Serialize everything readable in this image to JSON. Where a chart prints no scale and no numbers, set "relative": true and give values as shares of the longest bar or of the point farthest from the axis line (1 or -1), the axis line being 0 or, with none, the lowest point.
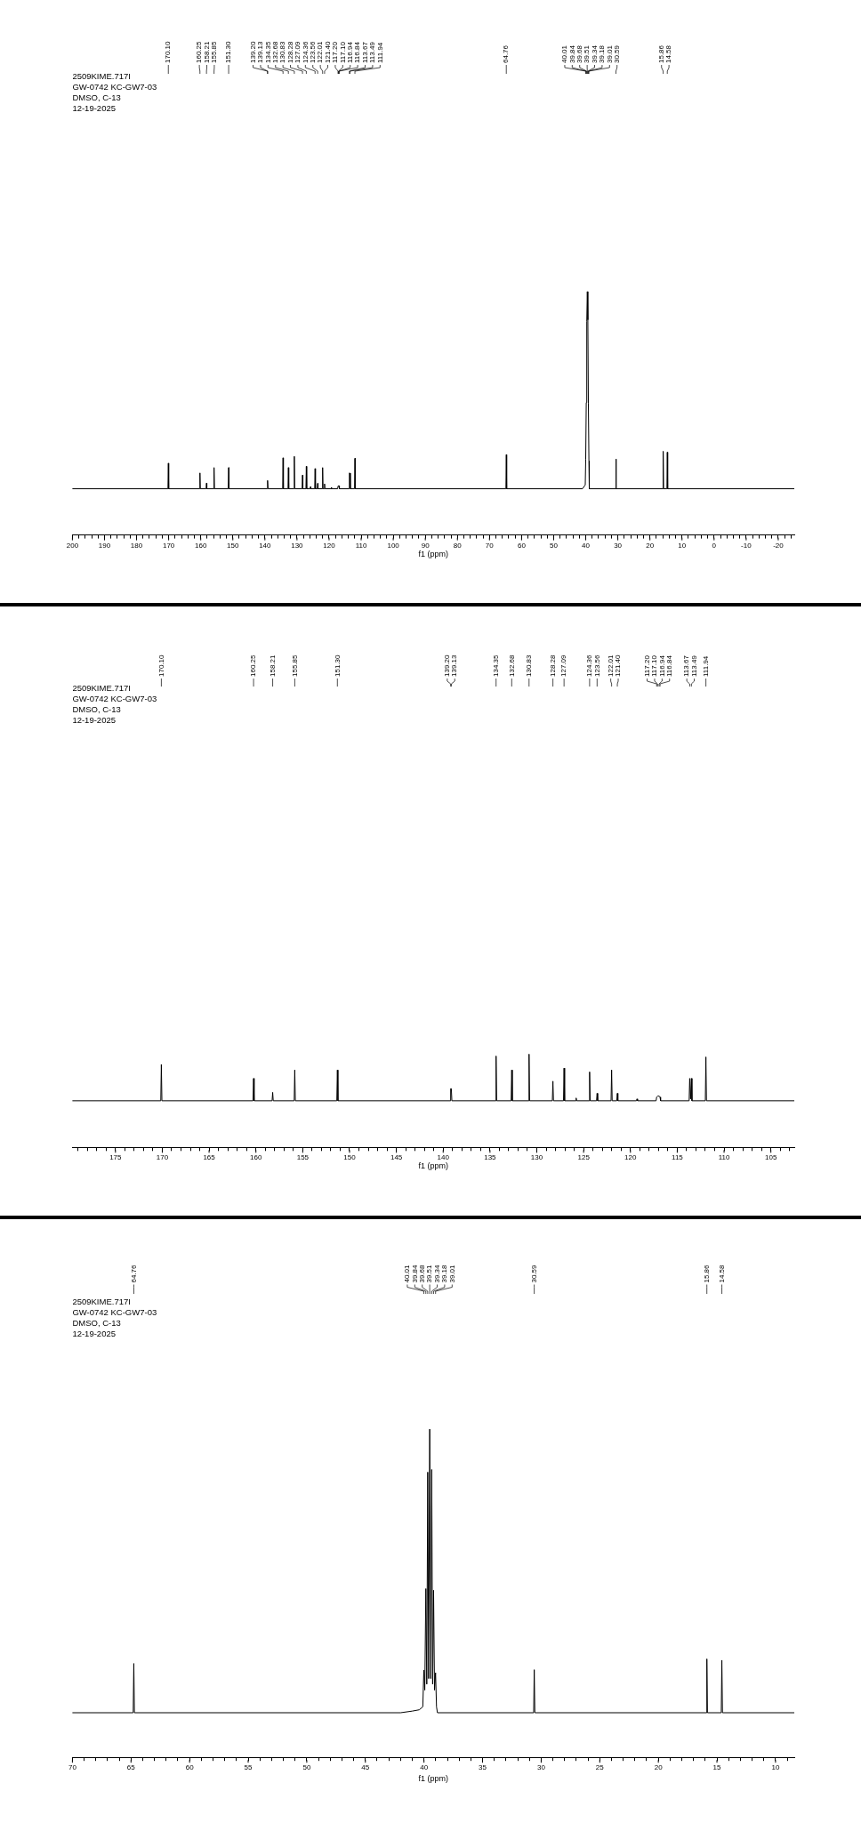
{
  "chart_data": [
    {
      "type": "line",
      "title": "2509KIME.717I",
      "subtitle": "GW-0742 KC-GW7-03",
      "xlabel": "f1 (ppm)",
      "relative": true,
      "annotations": [
        "DMSO, C-13",
        "12-19-2025",
        {
          "text": "170.10",
          "x": 170.1
        },
        {
          "text": "160.25",
          "x": 160.25
        },
        {
          "text": "158.21",
          "x": 158.21
        },
        {
          "text": "155.85",
          "x": 155.85
        },
        {
          "text": "151.30",
          "x": 151.3
        },
        {
          "text": "139.20",
          "x": 139.2
        },
        {
          "text": "139.13",
          "x": 139.13
        },
        {
          "text": "134.35",
          "x": 134.35
        },
        {
          "text": "132.68",
          "x": 132.68
        },
        {
          "text": "130.83",
          "x": 130.83
        },
        {
          "text": "128.28",
          "x": 128.28
        },
        {
          "text": "127.09",
          "x": 127.09
        },
        {
          "text": "124.36",
          "x": 124.36
        },
        {
          "text": "123.56",
          "x": 123.56
        },
        {
          "text": "122.01",
          "x": 122.01
        },
        {
          "text": "121.40",
          "x": 121.4
        },
        {
          "text": "117.20",
          "x": 117.2
        },
        {
          "text": "117.10",
          "x": 117.1
        },
        {
          "text": "116.94",
          "x": 116.94
        },
        {
          "text": "116.84",
          "x": 116.84
        },
        {
          "text": "113.67",
          "x": 113.67
        },
        {
          "text": "113.49",
          "x": 113.49
        },
        {
          "text": "111.94",
          "x": 111.94
        },
        {
          "text": "64.76",
          "x": 64.76
        },
        {
          "text": "40.01",
          "x": 40.01
        },
        {
          "text": "39.84",
          "x": 39.84
        },
        {
          "text": "39.68",
          "x": 39.68
        },
        {
          "text": "39.51",
          "x": 39.51
        },
        {
          "text": "39.34",
          "x": 39.34
        },
        {
          "text": "39.18",
          "x": 39.18
        },
        {
          "text": "39.01",
          "x": 39.01
        },
        {
          "text": "30.59",
          "x": 30.59
        },
        {
          "text": "15.86",
          "x": 15.86
        },
        {
          "text": "14.58",
          "x": 14.58
        }
      ],
      "xlim": [
        200,
        -25
      ],
      "xticks": [
        200,
        {
          "value": 198,
          "label": null
        },
        {
          "value": 196,
          "label": null
        },
        {
          "value": 194,
          "label": null
        },
        {
          "value": 192,
          "label": null
        },
        190,
        {
          "value": 188,
          "label": null
        },
        {
          "value": 186,
          "label": null
        },
        {
          "value": 184,
          "label": null
        },
        {
          "value": 182,
          "label": null
        },
        180,
        {
          "value": 178,
          "label": null
        },
        {
          "value": 176,
          "label": null
        },
        {
          "value": 174,
          "label": null
        },
        {
          "value": 172,
          "label": null
        },
        170,
        {
          "value": 168,
          "label": null
        },
        {
          "value": 166,
          "label": null
        },
        {
          "value": 164,
          "label": null
        },
        {
          "value": 162,
          "label": null
        },
        160,
        {
          "value": 158,
          "label": null
        },
        {
          "value": 156,
          "label": null
        },
        {
          "value": 154,
          "label": null
        },
        {
          "value": 152,
          "label": null
        },
        150,
        {
          "value": 148,
          "label": null
        },
        {
          "value": 146,
          "label": null
        },
        {
          "value": 144,
          "label": null
        },
        {
          "value": 142,
          "label": null
        },
        140,
        {
          "value": 138,
          "label": null
        },
        {
          "value": 136,
          "label": null
        },
        {
          "value": 134,
          "label": null
        },
        {
          "value": 132,
          "label": null
        },
        130,
        {
          "value": 128,
          "label": null
        },
        {
          "value": 126,
          "label": null
        },
        {
          "value": 124,
          "label": null
        },
        {
          "value": 122,
          "label": null
        },
        120,
        {
          "value": 118,
          "label": null
        },
        {
          "value": 116,
          "label": null
        },
        {
          "value": 114,
          "label": null
        },
        {
          "value": 112,
          "label": null
        },
        110,
        {
          "value": 108,
          "label": null
        },
        {
          "value": 106,
          "label": null
        },
        {
          "value": 104,
          "label": null
        },
        {
          "value": 102,
          "label": null
        },
        100,
        {
          "value": 98,
          "label": null
        },
        {
          "value": 96,
          "label": null
        },
        {
          "value": 94,
          "label": null
        },
        {
          "value": 92,
          "label": null
        },
        90,
        {
          "value": 88,
          "label": null
        },
        {
          "value": 86,
          "label": null
        },
        {
          "value": 84,
          "label": null
        },
        {
          "value": 82,
          "label": null
        },
        80,
        {
          "value": 78,
          "label": null
        },
        {
          "value": 76,
          "label": null
        },
        {
          "value": 74,
          "label": null
        },
        {
          "value": 72,
          "label": null
        },
        70,
        {
          "value": 68,
          "label": null
        },
        {
          "value": 66,
          "label": null
        },
        {
          "value": 64,
          "label": null
        },
        {
          "value": 62,
          "label": null
        },
        60,
        {
          "value": 58,
          "label": null
        },
        {
          "value": 56,
          "label": null
        },
        {
          "value": 54,
          "label": null
        },
        {
          "value": 52,
          "label": null
        },
        50,
        {
          "value": 48,
          "label": null
        },
        {
          "value": 46,
          "label": null
        },
        {
          "value": 44,
          "label": null
        },
        {
          "value": 42,
          "label": null
        },
        40,
        {
          "value": 38,
          "label": null
        },
        {
          "value": 36,
          "label": null
        },
        {
          "value": 34,
          "label": null
        },
        {
          "value": 32,
          "label": null
        },
        30,
        {
          "value": 28,
          "label": null
        },
        {
          "value": 26,
          "label": null
        },
        {
          "value": 24,
          "label": null
        },
        {
          "value": 22,
          "label": null
        },
        20,
        {
          "value": 18,
          "label": null
        },
        {
          "value": 16,
          "label": null
        },
        {
          "value": 14,
          "label": null
        },
        {
          "value": 12,
          "label": null
        },
        10,
        {
          "value": 8,
          "label": null
        },
        {
          "value": 6,
          "label": null
        },
        {
          "value": 4,
          "label": null
        },
        {
          "value": 2,
          "label": null
        },
        0,
        {
          "value": -2,
          "label": null
        },
        {
          "value": -4,
          "label": null
        },
        {
          "value": -6,
          "label": null
        },
        {
          "value": -8,
          "label": null
        },
        -10,
        {
          "value": -12,
          "label": null
        },
        {
          "value": -14,
          "label": null
        },
        {
          "value": -16,
          "label": null
        },
        {
          "value": -18,
          "label": null
        },
        -20,
        {
          "value": -22,
          "label": null
        },
        {
          "value": -24,
          "label": null
        }
      ],
      "series": [
        {
          "color": "#000000",
          "x": [
            200,
            170.22,
            170.1,
            169.98,
            160.37,
            160.25,
            160.13,
            158.33,
            158.21,
            158.09,
            155.97,
            155.85,
            155.73,
            151.42,
            151.3,
            151.18,
            139.32,
            139.2,
            139.13,
            139.01,
            134.47,
            134.35,
            134.23,
            132.8,
            132.68,
            132.56,
            130.95,
            130.83,
            130.71,
            128.4,
            128.28,
            128.16,
            127.21,
            127.09,
            126.97,
            125.92,
            125.8,
            125.68,
            124.48,
            124.36,
            124.24,
            123.68,
            123.56,
            123.44,
            122.13,
            122.01,
            121.89,
            121.52,
            121.4,
            121.28,
            119.42,
            119.3,
            119.18,
            117.32,
            117.2,
            117.1,
            116.94,
            116.84,
            116.72,
            113.79,
            113.67,
            113.49,
            113.37,
            112.06,
            111.94,
            111.82,
            64.88,
            64.76,
            64.64,
            41,
            40.15,
            40.01,
            39.84,
            39.68,
            39.51,
            39.34,
            39.18,
            39.01,
            38.9,
            30.71,
            30.59,
            30.47,
            15.98,
            15.86,
            15.74,
            14.7,
            14.58,
            14.46,
            -25
          ],
          "values": [
            0.19,
            0.19,
            0.295,
            0.19,
            0.19,
            0.255,
            0.19,
            0.19,
            0.213,
            0.19,
            0.19,
            0.277,
            0.19,
            0.19,
            0.277,
            0.19,
            0.19,
            0.224,
            0.224,
            0.19,
            0.19,
            0.317,
            0.19,
            0.19,
            0.277,
            0.19,
            0.19,
            0.323,
            0.19,
            0.19,
            0.246,
            0.19,
            0.19,
            0.282,
            0.19,
            0.19,
            0.198,
            0.19,
            0.19,
            0.273,
            0.19,
            0.19,
            0.212,
            0.19,
            0.19,
            0.277,
            0.19,
            0.19,
            0.21,
            0.19,
            0.19,
            0.196,
            0.19,
            0.19,
            0.201,
            0.201,
            0.202,
            0.201,
            0.19,
            0.19,
            0.255,
            0.254,
            0.19,
            0.19,
            0.315,
            0.19,
            0.19,
            0.33,
            0.19,
            0.19,
            0.206,
            0.312,
            0.544,
            0.878,
            1,
            0.884,
            0.54,
            0.304,
            0.19,
            0.19,
            0.312,
            0.19,
            0.19,
            0.344,
            0.19,
            0.19,
            0.34,
            0.19,
            0.19
          ]
        }
      ]
    },
    {
      "type": "line",
      "title": "2509KIME.717I",
      "subtitle": "GW-0742 KC-GW7-03",
      "xlabel": "f1 (ppm)",
      "relative": true,
      "annotations": [
        "DMSO, C-13",
        "12-19-2025",
        {
          "text": "170.10",
          "x": 170.1
        },
        {
          "text": "160.25",
          "x": 160.25
        },
        {
          "text": "158.21",
          "x": 158.21
        },
        {
          "text": "155.85",
          "x": 155.85
        },
        {
          "text": "151.30",
          "x": 151.3
        },
        {
          "text": "139.20",
          "x": 139.2
        },
        {
          "text": "139.13",
          "x": 139.13
        },
        {
          "text": "134.35",
          "x": 134.35
        },
        {
          "text": "132.68",
          "x": 132.68
        },
        {
          "text": "130.83",
          "x": 130.83
        },
        {
          "text": "128.28",
          "x": 128.28
        },
        {
          "text": "127.09",
          "x": 127.09
        },
        {
          "text": "124.36",
          "x": 124.36
        },
        {
          "text": "123.56",
          "x": 123.56
        },
        {
          "text": "122.01",
          "x": 122.01
        },
        {
          "text": "121.40",
          "x": 121.4
        },
        {
          "text": "117.20",
          "x": 117.2
        },
        {
          "text": "117.10",
          "x": 117.1
        },
        {
          "text": "116.94",
          "x": 116.94
        },
        {
          "text": "116.84",
          "x": 116.84
        },
        {
          "text": "113.67",
          "x": 113.67
        },
        {
          "text": "113.49",
          "x": 113.49
        },
        {
          "text": "111.94",
          "x": 111.94
        }
      ],
      "xlim": [
        179.6,
        102.5
      ],
      "xticks": [
        {
          "value": 179,
          "label": null
        },
        {
          "value": 178,
          "label": null
        },
        {
          "value": 177,
          "label": null
        },
        {
          "value": 176,
          "label": null
        },
        175,
        {
          "value": 174,
          "label": null
        },
        {
          "value": 173,
          "label": null
        },
        {
          "value": 172,
          "label": null
        },
        {
          "value": 171,
          "label": null
        },
        170,
        {
          "value": 169,
          "label": null
        },
        {
          "value": 168,
          "label": null
        },
        {
          "value": 167,
          "label": null
        },
        {
          "value": 166,
          "label": null
        },
        165,
        {
          "value": 164,
          "label": null
        },
        {
          "value": 163,
          "label": null
        },
        {
          "value": 162,
          "label": null
        },
        {
          "value": 161,
          "label": null
        },
        160,
        {
          "value": 159,
          "label": null
        },
        {
          "value": 158,
          "label": null
        },
        {
          "value": 157,
          "label": null
        },
        {
          "value": 156,
          "label": null
        },
        155,
        {
          "value": 154,
          "label": null
        },
        {
          "value": 153,
          "label": null
        },
        {
          "value": 152,
          "label": null
        },
        {
          "value": 151,
          "label": null
        },
        150,
        {
          "value": 149,
          "label": null
        },
        {
          "value": 148,
          "label": null
        },
        {
          "value": 147,
          "label": null
        },
        {
          "value": 146,
          "label": null
        },
        145,
        {
          "value": 144,
          "label": null
        },
        {
          "value": 143,
          "label": null
        },
        {
          "value": 142,
          "label": null
        },
        {
          "value": 141,
          "label": null
        },
        140,
        {
          "value": 139,
          "label": null
        },
        {
          "value": 138,
          "label": null
        },
        {
          "value": 137,
          "label": null
        },
        {
          "value": 136,
          "label": null
        },
        135,
        {
          "value": 134,
          "label": null
        },
        {
          "value": 133,
          "label": null
        },
        {
          "value": 132,
          "label": null
        },
        {
          "value": 131,
          "label": null
        },
        130,
        {
          "value": 129,
          "label": null
        },
        {
          "value": 128,
          "label": null
        },
        {
          "value": 127,
          "label": null
        },
        {
          "value": 126,
          "label": null
        },
        125,
        {
          "value": 124,
          "label": null
        },
        {
          "value": 123,
          "label": null
        },
        {
          "value": 122,
          "label": null
        },
        {
          "value": 121,
          "label": null
        },
        120,
        {
          "value": 119,
          "label": null
        },
        {
          "value": 118,
          "label": null
        },
        {
          "value": 117,
          "label": null
        },
        {
          "value": 116,
          "label": null
        },
        115,
        {
          "value": 114,
          "label": null
        },
        {
          "value": 113,
          "label": null
        },
        {
          "value": 112,
          "label": null
        },
        {
          "value": 111,
          "label": null
        },
        110,
        {
          "value": 109,
          "label": null
        },
        {
          "value": 108,
          "label": null
        },
        {
          "value": 107,
          "label": null
        },
        {
          "value": 106,
          "label": null
        },
        105,
        {
          "value": 104,
          "label": null
        },
        {
          "value": 103,
          "label": null
        }
      ],
      "series": [
        {
          "color": "#000000",
          "x": [
            179.6,
            170.16,
            170.1,
            170.04,
            160.31,
            160.25,
            160.19,
            158.27,
            158.21,
            158.15,
            155.91,
            155.85,
            155.79,
            151.36,
            151.3,
            151.24,
            139.26,
            139.2,
            139.13,
            139.07,
            134.41,
            134.35,
            134.29,
            132.74,
            132.68,
            132.62,
            130.89,
            130.83,
            130.77,
            128.34,
            128.28,
            128.22,
            127.15,
            127.09,
            127.03,
            125.86,
            125.8,
            125.74,
            124.42,
            124.36,
            124.3,
            123.62,
            123.56,
            123.5,
            122.07,
            122.01,
            121.95,
            121.46,
            121.4,
            121.34,
            119.36,
            119.3,
            119.24,
            117.26,
            117.2,
            117.1,
            116.94,
            116.84,
            116.78,
            113.73,
            113.67,
            113.58,
            113.49,
            113.43,
            112,
            111.94,
            111.88,
            102.5
          ],
          "values": [
            0.5,
            0.5,
            0.89,
            0.5,
            0.5,
            0.74,
            0.5,
            0.5,
            0.59,
            0.5,
            0.5,
            0.83,
            0.5,
            0.5,
            0.83,
            0.5,
            0.5,
            0.63,
            0.63,
            0.5,
            0.5,
            0.98,
            0.5,
            0.5,
            0.83,
            0.5,
            0.5,
            1,
            0.5,
            0.5,
            0.71,
            0.5,
            0.5,
            0.85,
            0.5,
            0.5,
            0.53,
            0.5,
            0.5,
            0.81,
            0.5,
            0.5,
            0.58,
            0.5,
            0.5,
            0.83,
            0.5,
            0.5,
            0.58,
            0.5,
            0.5,
            0.52,
            0.5,
            0.5,
            0.54,
            0.55,
            0.55,
            0.54,
            0.5,
            0.5,
            0.74,
            0.52,
            0.74,
            0.5,
            0.5,
            0.97,
            0.5,
            0.5
          ]
        }
      ]
    },
    {
      "type": "line",
      "title": "2509KIME.717I",
      "subtitle": "GW-0742 KC-GW7-03",
      "xlabel": "f1 (ppm)",
      "relative": true,
      "annotations": [
        "DMSO, C-13",
        "12-19-2025",
        {
          "text": "64.76",
          "x": 64.76
        },
        {
          "text": "40.01",
          "x": 40.01
        },
        {
          "text": "39.84",
          "x": 39.84
        },
        {
          "text": "39.68",
          "x": 39.68
        },
        {
          "text": "39.51",
          "x": 39.51
        },
        {
          "text": "39.34",
          "x": 39.34
        },
        {
          "text": "39.18",
          "x": 39.18
        },
        {
          "text": "39.01",
          "x": 39.01
        },
        {
          "text": "30.59",
          "x": 30.59
        },
        {
          "text": "15.86",
          "x": 15.86
        },
        {
          "text": "14.58",
          "x": 14.58
        }
      ],
      "xlim": [
        70,
        8.4
      ],
      "xticks": [
        70,
        {
          "value": 69,
          "label": null
        },
        {
          "value": 68,
          "label": null
        },
        {
          "value": 67,
          "label": null
        },
        {
          "value": 66,
          "label": null
        },
        65,
        {
          "value": 64,
          "label": null
        },
        {
          "value": 63,
          "label": null
        },
        {
          "value": 62,
          "label": null
        },
        {
          "value": 61,
          "label": null
        },
        60,
        {
          "value": 59,
          "label": null
        },
        {
          "value": 58,
          "label": null
        },
        {
          "value": 57,
          "label": null
        },
        {
          "value": 56,
          "label": null
        },
        55,
        {
          "value": 54,
          "label": null
        },
        {
          "value": 53,
          "label": null
        },
        {
          "value": 52,
          "label": null
        },
        {
          "value": 51,
          "label": null
        },
        50,
        {
          "value": 49,
          "label": null
        },
        {
          "value": 48,
          "label": null
        },
        {
          "value": 47,
          "label": null
        },
        {
          "value": 46,
          "label": null
        },
        45,
        {
          "value": 44,
          "label": null
        },
        {
          "value": 43,
          "label": null
        },
        {
          "value": 42,
          "label": null
        },
        {
          "value": 41,
          "label": null
        },
        40,
        {
          "value": 39,
          "label": null
        },
        {
          "value": 38,
          "label": null
        },
        {
          "value": 37,
          "label": null
        },
        {
          "value": 36,
          "label": null
        },
        35,
        {
          "value": 34,
          "label": null
        },
        {
          "value": 33,
          "label": null
        },
        {
          "value": 32,
          "label": null
        },
        {
          "value": 31,
          "label": null
        },
        30,
        {
          "value": 29,
          "label": null
        },
        {
          "value": 28,
          "label": null
        },
        {
          "value": 27,
          "label": null
        },
        {
          "value": 26,
          "label": null
        },
        25,
        {
          "value": 24,
          "label": null
        },
        {
          "value": 23,
          "label": null
        },
        {
          "value": 22,
          "label": null
        },
        {
          "value": 21,
          "label": null
        },
        20,
        {
          "value": 19,
          "label": null
        },
        {
          "value": 18,
          "label": null
        },
        {
          "value": 17,
          "label": null
        },
        {
          "value": 16,
          "label": null
        },
        15,
        {
          "value": 14,
          "label": null
        },
        {
          "value": 13,
          "label": null
        },
        {
          "value": 12,
          "label": null
        },
        {
          "value": 11,
          "label": null
        },
        10,
        {
          "value": 9,
          "label": null
        }
      ],
      "series": [
        {
          "color": "#000000",
          "x": [
            70,
            64.81,
            64.76,
            64.71,
            42,
            41,
            40.4,
            40.1,
            40.01,
            39.93,
            39.84,
            39.76,
            39.68,
            39.6,
            39.51,
            39.42,
            39.34,
            39.26,
            39.18,
            39.1,
            39.01,
            38.93,
            38.85,
            30.64,
            30.59,
            30.54,
            15.91,
            15.86,
            15.81,
            14.63,
            14.58,
            14.53,
            8.4
          ],
          "values": [
            0.136,
            0.136,
            0.286,
            0.136,
            0.136,
            0.141,
            0.145,
            0.154,
            0.266,
            0.205,
            0.514,
            0.223,
            0.869,
            0.24,
            1,
            0.24,
            0.877,
            0.223,
            0.509,
            0.205,
            0.258,
            0.154,
            0.136,
            0.136,
            0.267,
            0.136,
            0.136,
            0.3,
            0.136,
            0.136,
            0.296,
            0.136,
            0.136
          ]
        }
      ]
    }
  ]
}
